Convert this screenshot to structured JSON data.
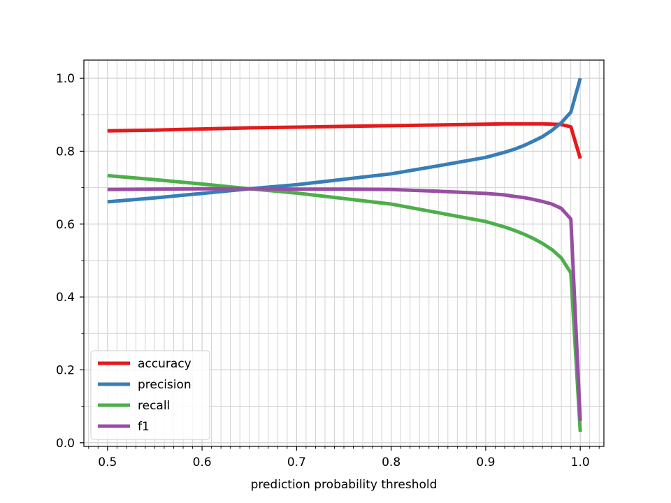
{
  "chart_data": {
    "type": "line",
    "xlabel": "prediction probability threshold",
    "ylabel": "",
    "xlim": [
      0.475,
      1.025
    ],
    "ylim": [
      -0.01,
      1.05
    ],
    "x_ticks": [
      0.5,
      0.6,
      0.7,
      0.8,
      0.9,
      1.0
    ],
    "x_tick_labels": [
      "0.5",
      "0.6",
      "0.7",
      "0.8",
      "0.9",
      "1.0"
    ],
    "y_ticks": [
      0.0,
      0.2,
      0.4,
      0.6,
      0.8,
      1.0
    ],
    "y_tick_labels": [
      "0.0",
      "0.2",
      "0.4",
      "0.6",
      "0.8",
      "1.0"
    ],
    "grid": "major and minor (x minor every 0.01, y minor every 0.1)",
    "legend_position": "lower-left",
    "x": [
      0.5,
      0.55,
      0.6,
      0.65,
      0.7,
      0.75,
      0.8,
      0.85,
      0.9,
      0.92,
      0.93,
      0.94,
      0.95,
      0.96,
      0.97,
      0.98,
      0.99,
      1.0
    ],
    "series": [
      {
        "name": "accuracy",
        "color": "#e41a1c",
        "values": [
          0.856,
          0.858,
          0.861,
          0.864,
          0.866,
          0.868,
          0.87,
          0.872,
          0.874,
          0.875,
          0.875,
          0.875,
          0.875,
          0.875,
          0.874,
          0.873,
          0.867,
          0.78
        ]
      },
      {
        "name": "precision",
        "color": "#377eb8",
        "values": [
          0.661,
          0.672,
          0.684,
          0.697,
          0.708,
          0.723,
          0.738,
          0.76,
          0.783,
          0.797,
          0.805,
          0.815,
          0.827,
          0.84,
          0.857,
          0.878,
          0.907,
          1.0
        ]
      },
      {
        "name": "recall",
        "color": "#4daf4a",
        "values": [
          0.733,
          0.722,
          0.71,
          0.697,
          0.685,
          0.67,
          0.655,
          0.631,
          0.607,
          0.592,
          0.583,
          0.573,
          0.561,
          0.547,
          0.53,
          0.507,
          0.466,
          0.03
        ]
      },
      {
        "name": "f1",
        "color": "#984ea3",
        "values": [
          0.695,
          0.696,
          0.697,
          0.697,
          0.696,
          0.696,
          0.695,
          0.69,
          0.684,
          0.68,
          0.676,
          0.673,
          0.668,
          0.662,
          0.655,
          0.643,
          0.614,
          0.06
        ]
      }
    ]
  }
}
